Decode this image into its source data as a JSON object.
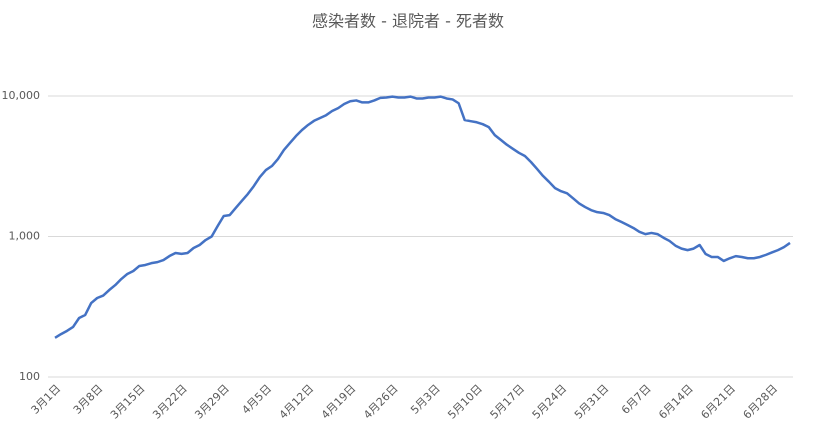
{
  "chart_data": {
    "type": "line",
    "title": "感染者数 - 退院者 - 死者数",
    "categories": [
      "3月1日",
      null,
      null,
      null,
      null,
      null,
      null,
      "3月8日",
      null,
      null,
      null,
      null,
      null,
      null,
      "3月15日",
      null,
      null,
      null,
      null,
      null,
      null,
      "3月22日",
      null,
      null,
      null,
      null,
      null,
      null,
      "3月29日",
      null,
      null,
      null,
      null,
      null,
      null,
      "4月5日",
      null,
      null,
      null,
      null,
      null,
      null,
      "4月12日",
      null,
      null,
      null,
      null,
      null,
      null,
      "4月19日",
      null,
      null,
      null,
      null,
      null,
      null,
      "4月26日",
      null,
      null,
      null,
      null,
      null,
      null,
      "5月3日",
      null,
      null,
      null,
      null,
      null,
      null,
      "5月10日",
      null,
      null,
      null,
      null,
      null,
      null,
      "5月17日",
      null,
      null,
      null,
      null,
      null,
      null,
      "5月24日",
      null,
      null,
      null,
      null,
      null,
      null,
      "5月31日",
      null,
      null,
      null,
      null,
      null,
      null,
      "6月7日",
      null,
      null,
      null,
      null,
      null,
      null,
      "6月14日",
      null,
      null,
      null,
      null,
      null,
      null,
      "6月21日",
      null,
      null,
      null,
      null,
      null,
      null,
      "6月28日",
      null,
      null,
      null
    ],
    "values": [
      190,
      202,
      213,
      227,
      263,
      276,
      336,
      365,
      380,
      416,
      451,
      498,
      541,
      568,
      617,
      627,
      646,
      657,
      680,
      726,
      763,
      752,
      763,
      828,
      870,
      944,
      1000,
      1188,
      1400,
      1420,
      1596,
      1790,
      2005,
      2285,
      2650,
      2970,
      3175,
      3560,
      4130,
      4630,
      5190,
      5730,
      6220,
      6660,
      6970,
      7300,
      7820,
      8200,
      8770,
      9170,
      9300,
      9000,
      9000,
      9300,
      9700,
      9750,
      9900,
      9750,
      9750,
      9900,
      9600,
      9600,
      9750,
      9750,
      9900,
      9600,
      9450,
      8880,
      6740,
      6620,
      6500,
      6300,
      6010,
      5270,
      4870,
      4500,
      4210,
      3940,
      3740,
      3390,
      3030,
      2700,
      2450,
      2210,
      2100,
      2030,
      1870,
      1720,
      1620,
      1540,
      1490,
      1470,
      1420,
      1330,
      1270,
      1210,
      1150,
      1080,
      1040,
      1060,
      1040,
      980,
      930,
      860,
      820,
      800,
      820,
      870,
      750,
      715,
      715,
      670,
      700,
      725,
      715,
      700,
      700,
      715,
      740,
      770,
      800,
      840,
      900
    ],
    "color": "#4472c4",
    "log_scale": true,
    "grid": true,
    "ylim": [
      100,
      10000
    ],
    "yticks": [
      100,
      {
        "value": 1000,
        "label": "1,000"
      },
      {
        "value": 10000,
        "label": "10,000"
      }
    ]
  }
}
